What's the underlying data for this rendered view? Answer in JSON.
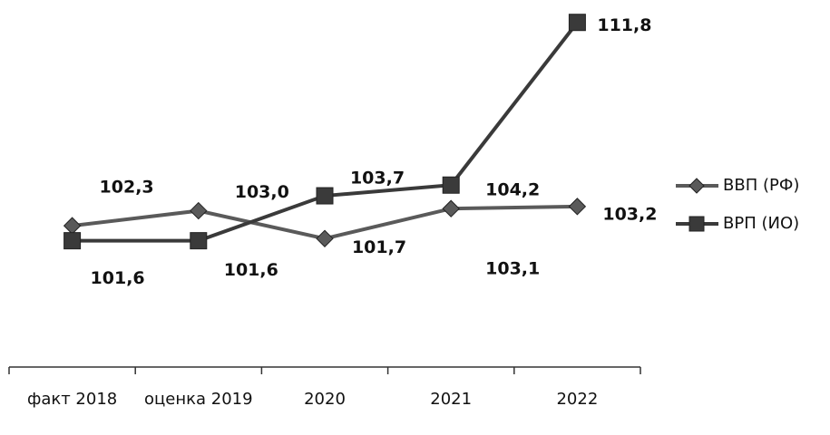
{
  "chart_data": {
    "type": "line",
    "categories": [
      "факт 2018",
      "оценка 2019",
      "2020",
      "2021",
      "2022"
    ],
    "series": [
      {
        "name": "ВВП (РФ)",
        "color": "#5a5a5a",
        "marker": "diamond",
        "values": [
          102.3,
          103.0,
          101.7,
          103.1,
          103.2
        ],
        "value_labels": [
          "102,3",
          "103,0",
          "101,7",
          "103,1",
          "103,2"
        ]
      },
      {
        "name": "ВРП (ИО)",
        "color": "#3a3a3a",
        "marker": "square",
        "values": [
          101.6,
          101.6,
          103.7,
          104.2,
          111.8
        ],
        "value_labels": [
          "101,6",
          "101,6",
          "103,7",
          "104,2",
          "111,8"
        ]
      }
    ],
    "ylim": [
      95.7,
      112
    ],
    "legend": "right"
  }
}
